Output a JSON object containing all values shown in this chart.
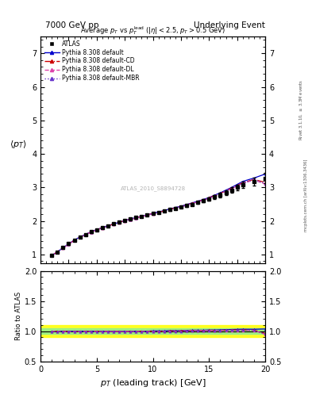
{
  "title_left": "7000 GeV pp",
  "title_right": "Underlying Event",
  "plot_title": "Average $p_T$ vs $p_T^{\\mathrm{lead}}$ ($|\\eta| < 2.5$, $p_T > 0.5$ GeV)",
  "xlabel": "$p_T$ (leading track) [GeV]",
  "ylabel_main": "$\\langle p_T \\rangle$",
  "ylabel_ratio": "Ratio to ATLAS",
  "right_label_top": "Rivet 3.1.10, $\\geq$ 3.3M events",
  "right_label_bottom": "mcplots.cern.ch [arXiv:1306.3436]",
  "watermark": "ATLAS_2010_S8894728",
  "xlim": [
    0,
    20
  ],
  "ylim_main": [
    0.75,
    7.5
  ],
  "ylim_ratio": [
    0.5,
    2.0
  ],
  "yticks_main": [
    1,
    2,
    3,
    4,
    5,
    6,
    7
  ],
  "yticks_ratio": [
    0.5,
    1.0,
    1.5,
    2.0
  ],
  "xticks": [
    0,
    5,
    10,
    15,
    20
  ],
  "data_x": [
    1.0,
    1.5,
    2.0,
    2.5,
    3.0,
    3.5,
    4.0,
    4.5,
    5.0,
    5.5,
    6.0,
    6.5,
    7.0,
    7.5,
    8.0,
    8.5,
    9.0,
    9.5,
    10.0,
    10.5,
    11.0,
    11.5,
    12.0,
    12.5,
    13.0,
    13.5,
    14.0,
    14.5,
    15.0,
    15.5,
    16.0,
    16.5,
    17.0,
    17.5,
    18.0,
    19.0,
    20.0
  ],
  "atlas_y": [
    0.97,
    1.08,
    1.2,
    1.32,
    1.43,
    1.52,
    1.6,
    1.68,
    1.74,
    1.8,
    1.86,
    1.91,
    1.96,
    2.01,
    2.06,
    2.1,
    2.14,
    2.18,
    2.22,
    2.26,
    2.3,
    2.34,
    2.38,
    2.42,
    2.46,
    2.5,
    2.55,
    2.6,
    2.65,
    2.72,
    2.78,
    2.85,
    2.92,
    3.0,
    3.08,
    3.18,
    3.28
  ],
  "atlas_err": [
    0.02,
    0.02,
    0.02,
    0.02,
    0.02,
    0.02,
    0.02,
    0.02,
    0.02,
    0.02,
    0.02,
    0.02,
    0.02,
    0.02,
    0.02,
    0.02,
    0.02,
    0.02,
    0.02,
    0.02,
    0.03,
    0.03,
    0.03,
    0.03,
    0.04,
    0.04,
    0.04,
    0.05,
    0.05,
    0.06,
    0.07,
    0.07,
    0.08,
    0.09,
    0.1,
    0.12,
    0.15
  ],
  "py_default_y": [
    0.97,
    1.08,
    1.2,
    1.32,
    1.43,
    1.52,
    1.6,
    1.68,
    1.74,
    1.8,
    1.86,
    1.91,
    1.96,
    2.01,
    2.06,
    2.1,
    2.14,
    2.18,
    2.23,
    2.27,
    2.31,
    2.36,
    2.4,
    2.44,
    2.49,
    2.54,
    2.59,
    2.64,
    2.7,
    2.77,
    2.84,
    2.92,
    3.0,
    3.09,
    3.18,
    3.28,
    3.4
  ],
  "py_CD_y": [
    0.97,
    1.08,
    1.2,
    1.31,
    1.42,
    1.51,
    1.59,
    1.67,
    1.74,
    1.8,
    1.85,
    1.91,
    1.96,
    2.01,
    2.05,
    2.09,
    2.14,
    2.18,
    2.22,
    2.26,
    2.3,
    2.35,
    2.39,
    2.43,
    2.48,
    2.53,
    2.58,
    2.63,
    2.69,
    2.76,
    2.82,
    2.9,
    2.98,
    3.06,
    3.14,
    3.24,
    3.15
  ],
  "py_DL_y": [
    0.97,
    1.08,
    1.19,
    1.31,
    1.42,
    1.51,
    1.59,
    1.67,
    1.73,
    1.79,
    1.85,
    1.9,
    1.95,
    2.0,
    2.05,
    2.09,
    2.13,
    2.17,
    2.21,
    2.25,
    2.3,
    2.34,
    2.38,
    2.42,
    2.47,
    2.52,
    2.57,
    2.62,
    2.68,
    2.74,
    2.81,
    2.88,
    2.96,
    3.04,
    3.12,
    3.22,
    3.1
  ],
  "py_MBR_y": [
    0.97,
    1.08,
    1.2,
    1.31,
    1.42,
    1.51,
    1.59,
    1.67,
    1.74,
    1.8,
    1.85,
    1.91,
    1.96,
    2.01,
    2.05,
    2.09,
    2.13,
    2.17,
    2.22,
    2.26,
    2.3,
    2.34,
    2.38,
    2.42,
    2.47,
    2.52,
    2.57,
    2.62,
    2.68,
    2.75,
    2.82,
    2.9,
    2.97,
    3.05,
    3.13,
    3.23,
    3.12
  ],
  "color_atlas": "#000000",
  "color_default": "#0000cc",
  "color_CD": "#cc0000",
  "color_DL": "#dd44aa",
  "color_MBR": "#6633cc",
  "ratio_band_green": [
    0.95,
    1.05
  ],
  "ratio_band_yellow": [
    0.9,
    1.1
  ],
  "legend_labels": [
    "ATLAS",
    "Pythia 8.308 default",
    "Pythia 8.308 default-CD",
    "Pythia 8.308 default-DL",
    "Pythia 8.308 default-MBR"
  ]
}
